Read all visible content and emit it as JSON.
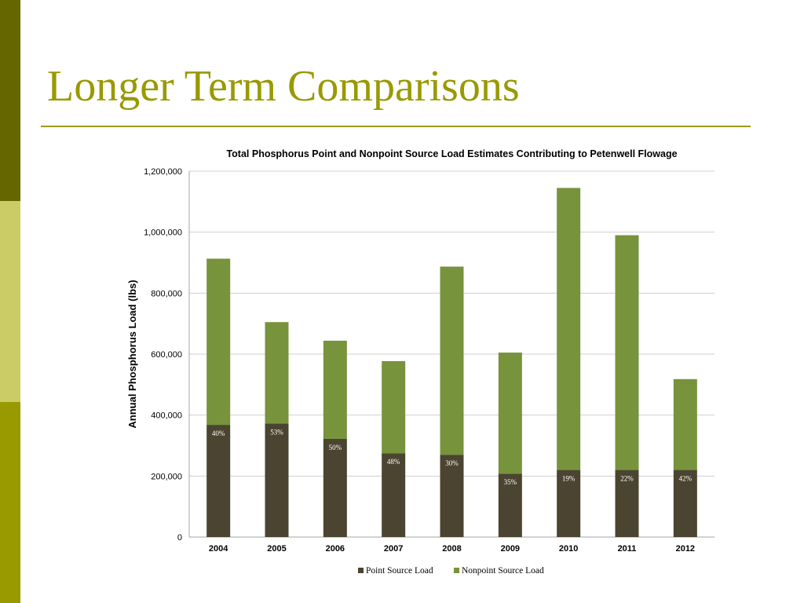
{
  "slide": {
    "title": "Longer Term Comparisons",
    "colors": {
      "sidebar_top": "#666600",
      "sidebar_mid": "#cccc66",
      "sidebar_bottom": "#999900",
      "title": "#999900"
    }
  },
  "chart_data": {
    "type": "bar",
    "stacked": true,
    "title": "Total Phosphorus Point and Nonpoint Source Load Estimates Contributing to Petenwell Flowage",
    "xlabel": "",
    "ylabel": "Annual Phosphorus Load (lbs)",
    "ylim": [
      0,
      1200000
    ],
    "yticks": [
      0,
      200000,
      400000,
      600000,
      800000,
      1000000,
      1200000
    ],
    "ytick_labels": [
      "0",
      "200,000",
      "400,000",
      "600,000",
      "800,000",
      "1,000,000",
      "1,200,000"
    ],
    "grid": true,
    "legend_position": "bottom",
    "categories": [
      "2004",
      "2005",
      "2006",
      "2007",
      "2008",
      "2009",
      "2010",
      "2011",
      "2012"
    ],
    "series": [
      {
        "name": "Point Source Load",
        "color": "#4a4430",
        "values": [
          368000,
          372000,
          322000,
          275000,
          270000,
          208000,
          220000,
          220000,
          220000
        ]
      },
      {
        "name": "Nonpoint Source Load",
        "color": "#77933c",
        "values": [
          545000,
          333000,
          322000,
          302000,
          617000,
          397000,
          925000,
          770000,
          298000
        ]
      }
    ],
    "annotations": [
      "40%",
      "53%",
      "50%",
      "48%",
      "30%",
      "35%",
      "19%",
      "22%",
      "42%"
    ]
  }
}
